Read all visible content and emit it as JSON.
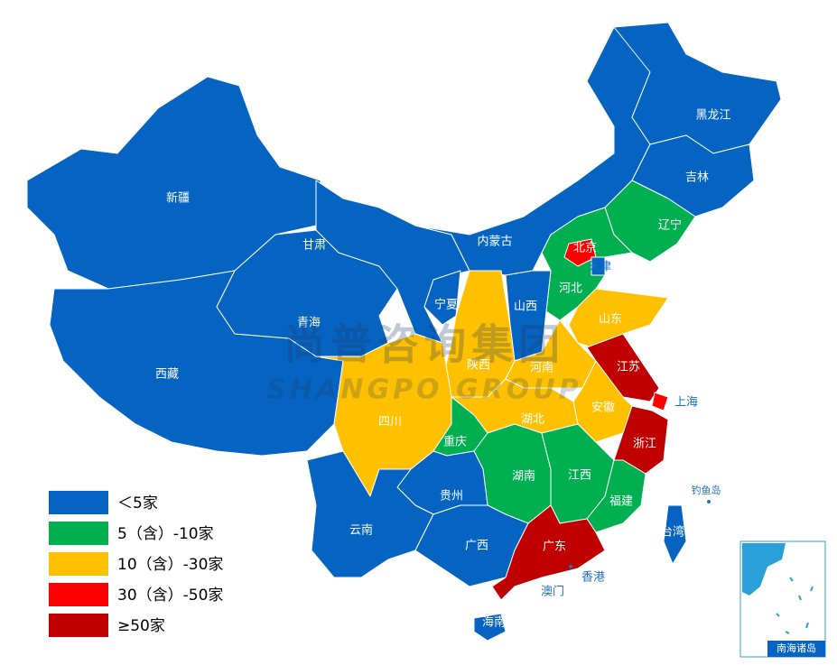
{
  "map": {
    "legend": [
      {
        "label": "＜5家",
        "color": "#0563c1"
      },
      {
        "label": "5（含）-10家",
        "color": "#00b050"
      },
      {
        "label": "10（含）-30家",
        "color": "#ffc000"
      },
      {
        "label": "30（含）-50家",
        "color": "#ff0000"
      },
      {
        "label": "≥50家",
        "color": "#c00000"
      }
    ],
    "provinces": [
      {
        "name": "新疆",
        "category": 0
      },
      {
        "name": "西藏",
        "category": 0
      },
      {
        "name": "青海",
        "category": 0
      },
      {
        "name": "甘肃",
        "category": 0
      },
      {
        "name": "内蒙古",
        "category": 0
      },
      {
        "name": "黑龙江",
        "category": 0
      },
      {
        "name": "吉林",
        "category": 0
      },
      {
        "name": "辽宁",
        "category": 1
      },
      {
        "name": "河北",
        "category": 1
      },
      {
        "name": "北京",
        "category": 3
      },
      {
        "name": "天津",
        "category": 0
      },
      {
        "name": "山西",
        "category": 0
      },
      {
        "name": "宁夏",
        "category": 0
      },
      {
        "name": "陕西",
        "category": 2
      },
      {
        "name": "山东",
        "category": 2
      },
      {
        "name": "河南",
        "category": 2
      },
      {
        "name": "江苏",
        "category": 4
      },
      {
        "name": "上海",
        "category": 3
      },
      {
        "name": "安徽",
        "category": 2
      },
      {
        "name": "湖北",
        "category": 2
      },
      {
        "name": "四川",
        "category": 2
      },
      {
        "name": "重庆",
        "category": 1
      },
      {
        "name": "湖南",
        "category": 1
      },
      {
        "name": "江西",
        "category": 1
      },
      {
        "name": "浙江",
        "category": 4
      },
      {
        "name": "福建",
        "category": 1
      },
      {
        "name": "贵州",
        "category": 0
      },
      {
        "name": "云南",
        "category": 0
      },
      {
        "name": "广西",
        "category": 0
      },
      {
        "name": "广东",
        "category": 4
      },
      {
        "name": "海南",
        "category": 0
      },
      {
        "name": "台湾",
        "category": 0
      }
    ],
    "places": [
      "香港",
      "澳门",
      "钓鱼岛"
    ],
    "inset_label": "南海诸岛",
    "watermark": {
      "cn": "尚普咨询集团",
      "en": "SHANGPO GROUP"
    }
  }
}
